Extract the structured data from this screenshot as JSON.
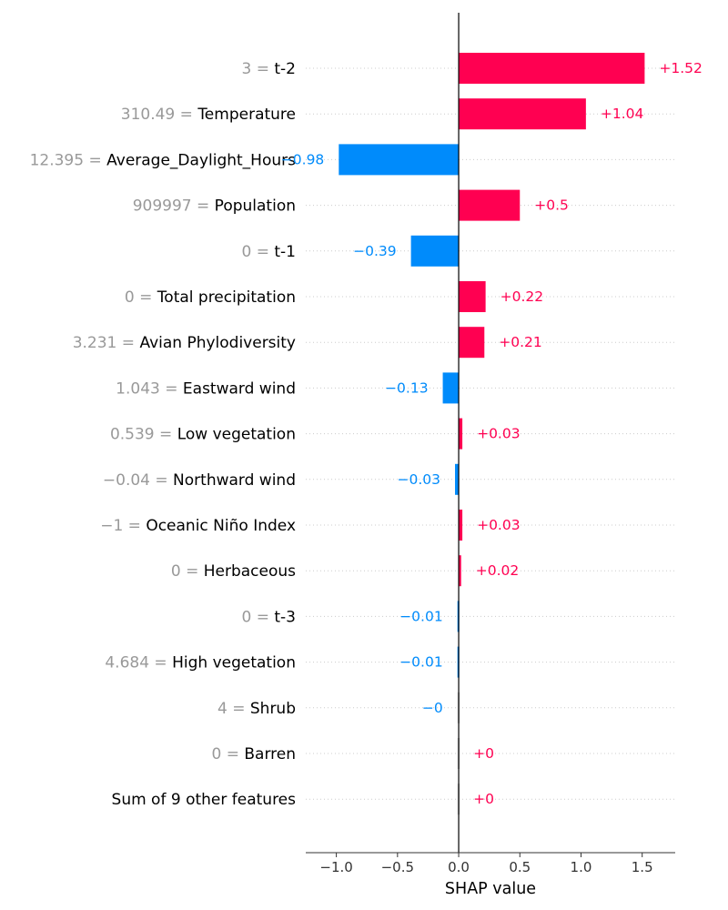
{
  "chart_data": {
    "type": "bar",
    "orientation": "horizontal",
    "chart_kind": "shap-bar",
    "xlabel": "SHAP value",
    "xlim": [
      -1.25,
      1.77
    ],
    "xticks": [
      -1.0,
      -0.5,
      0.0,
      0.5,
      1.0,
      1.5
    ],
    "xtick_labels": [
      "−1.0",
      "−0.5",
      "0.0",
      "0.5",
      "1.0",
      "1.5"
    ],
    "grid": "horizontal dotted per row",
    "zero_line": true,
    "colors": {
      "positive": "#ff0051",
      "negative": "#008bfb",
      "near_zero": "#cccccc",
      "feature_value": "#999999"
    },
    "rows": [
      {
        "feature_value": "3",
        "feature": "t-2",
        "value": 1.52,
        "value_label": "+1.52"
      },
      {
        "feature_value": "310.49",
        "feature": "Temperature",
        "value": 1.04,
        "value_label": "+1.04"
      },
      {
        "feature_value": "12.395",
        "feature": "Average_Daylight_Hours",
        "value": -0.98,
        "value_label": "−0.98"
      },
      {
        "feature_value": "909997",
        "feature": "Population",
        "value": 0.5,
        "value_label": "+0.5"
      },
      {
        "feature_value": "0",
        "feature": "t-1",
        "value": -0.39,
        "value_label": "−0.39"
      },
      {
        "feature_value": "0",
        "feature": "Total precipitation",
        "value": 0.22,
        "value_label": "+0.22"
      },
      {
        "feature_value": "3.231",
        "feature": "Avian Phylodiversity",
        "value": 0.21,
        "value_label": "+0.21"
      },
      {
        "feature_value": "1.043",
        "feature": "Eastward wind",
        "value": -0.13,
        "value_label": "−0.13"
      },
      {
        "feature_value": "0.539",
        "feature": "Low vegetation",
        "value": 0.03,
        "value_label": "+0.03"
      },
      {
        "feature_value": "−0.04",
        "feature": "Northward wind",
        "value": -0.03,
        "value_label": "−0.03"
      },
      {
        "feature_value": "−1",
        "feature": "Oceanic Niño Index",
        "value": 0.03,
        "value_label": "+0.03"
      },
      {
        "feature_value": "0",
        "feature": "Herbaceous",
        "value": 0.02,
        "value_label": "+0.02"
      },
      {
        "feature_value": "0",
        "feature": "t-3",
        "value": -0.01,
        "value_label": "−0.01"
      },
      {
        "feature_value": "4.684",
        "feature": "High vegetation",
        "value": -0.01,
        "value_label": "−0.01"
      },
      {
        "feature_value": "4",
        "feature": "Shrub",
        "value": -0.001,
        "value_label": "−0"
      },
      {
        "feature_value": "0",
        "feature": "Barren",
        "value": 0.001,
        "value_label": "+0"
      },
      {
        "feature_value": "",
        "feature": "Sum of 9 other features",
        "value": 0.001,
        "value_label": "+0"
      }
    ]
  }
}
